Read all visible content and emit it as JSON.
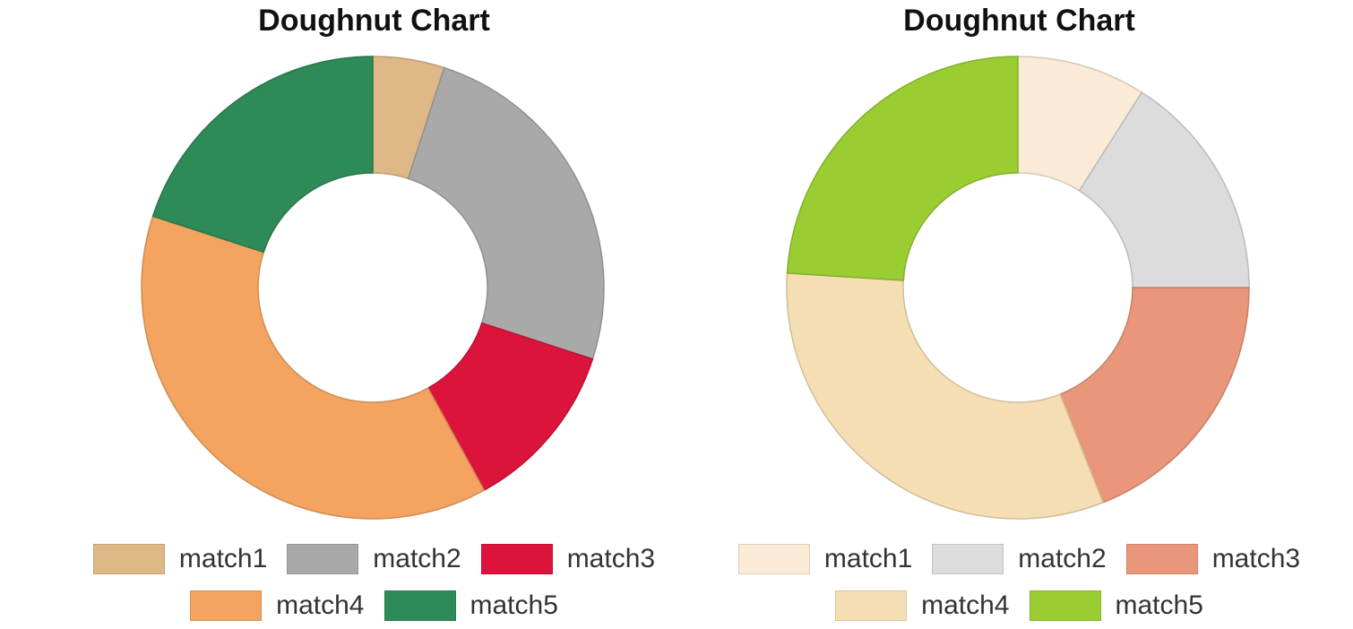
{
  "chart_data": [
    {
      "type": "doughnut",
      "title": "Doughnut Chart",
      "categories": [
        "match1",
        "match2",
        "match3",
        "match4",
        "match5"
      ],
      "values": [
        5,
        25,
        12,
        38,
        20
      ],
      "colors": [
        "#deb887",
        "#a9a9a9",
        "#dc143c",
        "#f4a460",
        "#2e8b57"
      ],
      "legend_position": "bottom"
    },
    {
      "type": "doughnut",
      "title": "Doughnut Chart",
      "categories": [
        "match1",
        "match2",
        "match3",
        "match4",
        "match5"
      ],
      "values": [
        9,
        16,
        19,
        32,
        24
      ],
      "colors": [
        "#faebd7",
        "#dcdcdc",
        "#e9967a",
        "#f5deb3",
        "#9acd32"
      ],
      "legend_position": "bottom"
    }
  ]
}
